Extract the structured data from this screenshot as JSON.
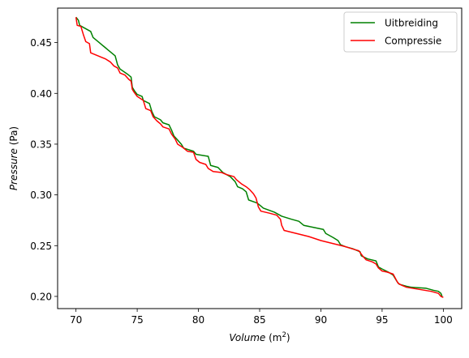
{
  "chart_data": {
    "type": "line",
    "title": "",
    "xlabel": {
      "italic": "Volume",
      "rest": " (m",
      "sup": "2",
      "close": ")"
    },
    "ylabel": {
      "italic": "Pressure",
      "rest": " (Pa)"
    },
    "xlim": [
      68.5,
      101.5
    ],
    "ylim": [
      0.188,
      0.484
    ],
    "xticks": [
      70,
      75,
      80,
      85,
      90,
      95,
      100
    ],
    "xtick_labels": [
      "70",
      "75",
      "80",
      "85",
      "90",
      "95",
      "100"
    ],
    "yticks": [
      0.2,
      0.25,
      0.3,
      0.35,
      0.4,
      0.45
    ],
    "ytick_labels": [
      "0.20",
      "0.25",
      "0.30",
      "0.35",
      "0.40",
      "0.45"
    ],
    "grid": false,
    "legend_position": "top-right",
    "series": [
      {
        "name": "Uitbreiding",
        "color": "#008000",
        "points": [
          [
            70.0,
            0.475
          ],
          [
            70.2,
            0.472
          ],
          [
            70.3,
            0.467
          ],
          [
            70.6,
            0.465
          ],
          [
            71.2,
            0.461
          ],
          [
            71.4,
            0.455
          ],
          [
            71.8,
            0.451
          ],
          [
            72.4,
            0.445
          ],
          [
            72.6,
            0.443
          ],
          [
            73.2,
            0.437
          ],
          [
            73.4,
            0.428
          ],
          [
            73.6,
            0.424
          ],
          [
            74.2,
            0.419
          ],
          [
            74.5,
            0.416
          ],
          [
            74.6,
            0.406
          ],
          [
            74.8,
            0.402
          ],
          [
            75.0,
            0.399
          ],
          [
            75.4,
            0.397
          ],
          [
            75.5,
            0.393
          ],
          [
            76.0,
            0.39
          ],
          [
            76.2,
            0.382
          ],
          [
            76.4,
            0.377
          ],
          [
            76.9,
            0.374
          ],
          [
            77.1,
            0.371
          ],
          [
            77.6,
            0.369
          ],
          [
            77.8,
            0.364
          ],
          [
            78.0,
            0.358
          ],
          [
            78.3,
            0.354
          ],
          [
            78.6,
            0.35
          ],
          [
            78.8,
            0.346
          ],
          [
            79.6,
            0.343
          ],
          [
            79.8,
            0.34
          ],
          [
            80.8,
            0.338
          ],
          [
            81.0,
            0.329
          ],
          [
            81.6,
            0.327
          ],
          [
            82.0,
            0.322
          ],
          [
            82.6,
            0.318
          ],
          [
            83.0,
            0.313
          ],
          [
            83.2,
            0.308
          ],
          [
            83.6,
            0.306
          ],
          [
            83.9,
            0.303
          ],
          [
            84.1,
            0.295
          ],
          [
            84.8,
            0.292
          ],
          [
            85.3,
            0.287
          ],
          [
            86.2,
            0.283
          ],
          [
            86.8,
            0.279
          ],
          [
            87.6,
            0.276
          ],
          [
            88.2,
            0.274
          ],
          [
            88.6,
            0.27
          ],
          [
            89.4,
            0.268
          ],
          [
            90.2,
            0.266
          ],
          [
            90.4,
            0.262
          ],
          [
            91.0,
            0.258
          ],
          [
            91.4,
            0.255
          ],
          [
            91.6,
            0.251
          ],
          [
            92.0,
            0.249
          ],
          [
            92.6,
            0.247
          ],
          [
            93.2,
            0.244
          ],
          [
            93.3,
            0.24
          ],
          [
            93.8,
            0.237
          ],
          [
            94.5,
            0.235
          ],
          [
            94.7,
            0.229
          ],
          [
            95.0,
            0.227
          ],
          [
            95.5,
            0.224
          ],
          [
            95.9,
            0.221
          ],
          [
            96.2,
            0.215
          ],
          [
            96.4,
            0.212
          ],
          [
            97.0,
            0.21
          ],
          [
            97.4,
            0.209
          ],
          [
            98.6,
            0.208
          ],
          [
            99.2,
            0.206
          ],
          [
            99.6,
            0.205
          ],
          [
            99.8,
            0.203
          ],
          [
            99.9,
            0.2
          ]
        ]
      },
      {
        "name": "Compressie",
        "color": "#ff0000",
        "points": [
          [
            70.0,
            0.475
          ],
          [
            70.1,
            0.467
          ],
          [
            70.4,
            0.466
          ],
          [
            70.6,
            0.458
          ],
          [
            70.8,
            0.451
          ],
          [
            71.1,
            0.449
          ],
          [
            71.2,
            0.44
          ],
          [
            71.4,
            0.439
          ],
          [
            72.4,
            0.434
          ],
          [
            72.8,
            0.431
          ],
          [
            73.1,
            0.427
          ],
          [
            73.4,
            0.425
          ],
          [
            73.6,
            0.42
          ],
          [
            74.0,
            0.418
          ],
          [
            74.3,
            0.414
          ],
          [
            74.5,
            0.412
          ],
          [
            74.6,
            0.404
          ],
          [
            74.7,
            0.402
          ],
          [
            75.0,
            0.397
          ],
          [
            75.5,
            0.393
          ],
          [
            75.7,
            0.385
          ],
          [
            76.1,
            0.383
          ],
          [
            76.3,
            0.377
          ],
          [
            76.6,
            0.373
          ],
          [
            76.9,
            0.37
          ],
          [
            77.1,
            0.367
          ],
          [
            77.6,
            0.365
          ],
          [
            77.8,
            0.36
          ],
          [
            78.1,
            0.355
          ],
          [
            78.3,
            0.35
          ],
          [
            78.7,
            0.347
          ],
          [
            79.1,
            0.343
          ],
          [
            79.6,
            0.342
          ],
          [
            79.8,
            0.335
          ],
          [
            80.1,
            0.332
          ],
          [
            80.6,
            0.33
          ],
          [
            80.8,
            0.326
          ],
          [
            81.2,
            0.323
          ],
          [
            81.9,
            0.322
          ],
          [
            82.3,
            0.32
          ],
          [
            82.9,
            0.318
          ],
          [
            83.1,
            0.315
          ],
          [
            83.5,
            0.311
          ],
          [
            83.9,
            0.308
          ],
          [
            84.2,
            0.305
          ],
          [
            84.5,
            0.301
          ],
          [
            84.7,
            0.297
          ],
          [
            84.9,
            0.288
          ],
          [
            85.1,
            0.284
          ],
          [
            85.8,
            0.282
          ],
          [
            86.4,
            0.28
          ],
          [
            86.7,
            0.276
          ],
          [
            86.8,
            0.27
          ],
          [
            87.0,
            0.265
          ],
          [
            88.0,
            0.262
          ],
          [
            89.0,
            0.259
          ],
          [
            90.0,
            0.255
          ],
          [
            91.0,
            0.252
          ],
          [
            92.0,
            0.249
          ],
          [
            92.8,
            0.246
          ],
          [
            93.1,
            0.245
          ],
          [
            93.4,
            0.24
          ],
          [
            93.7,
            0.236
          ],
          [
            94.2,
            0.234
          ],
          [
            94.5,
            0.232
          ],
          [
            94.7,
            0.228
          ],
          [
            95.0,
            0.225
          ],
          [
            95.4,
            0.224
          ],
          [
            95.9,
            0.222
          ],
          [
            96.3,
            0.213
          ],
          [
            96.6,
            0.211
          ],
          [
            97.0,
            0.209
          ],
          [
            97.5,
            0.208
          ],
          [
            98.0,
            0.207
          ],
          [
            99.0,
            0.205
          ],
          [
            99.6,
            0.203
          ],
          [
            99.8,
            0.2
          ],
          [
            100.0,
            0.199
          ]
        ]
      }
    ]
  }
}
